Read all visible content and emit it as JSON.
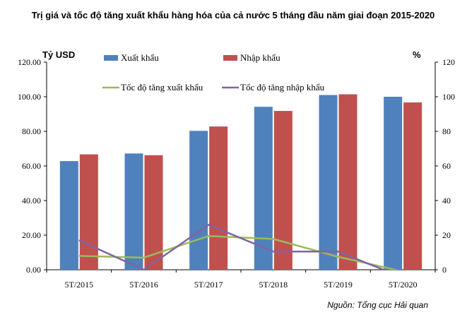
{
  "chart_data": {
    "type": "bar",
    "title": "Trị giá và tốc độ tăng xuất khẩu hàng hóa của cả nước 5 tháng đầu năm giai đoạn 2015-2020",
    "ylabel_left": "Tỷ USD",
    "ylabel_right": "%",
    "categories": [
      "5T/2015",
      "5T/2016",
      "5T/2017",
      "5T/2018",
      "5T/2019",
      "5T/2020"
    ],
    "y_left_ticks": [
      "0.00",
      "20.00",
      "40.00",
      "60.00",
      "80.00",
      "100.00",
      "120.00"
    ],
    "y_right_ticks": [
      "0",
      "20",
      "40",
      "60",
      "80",
      "100",
      "120"
    ],
    "ylim_left": [
      0,
      120
    ],
    "ylim_right": [
      0,
      120
    ],
    "legend_placement": "top",
    "series": [
      {
        "name": "Xuất khẩu",
        "kind": "bar",
        "axis": "left",
        "color": "#4f81bd",
        "values": [
          62.8,
          67.2,
          80.3,
          94.2,
          101.0,
          100.0
        ]
      },
      {
        "name": "Nhập khẩu",
        "kind": "bar",
        "axis": "left",
        "color": "#c0504d",
        "values": [
          66.7,
          66.2,
          82.8,
          91.8,
          101.4,
          96.7
        ]
      },
      {
        "name": "Tốc độ tăng xuất khẩu",
        "kind": "line",
        "axis": "right",
        "color": "#9bbb59",
        "values": [
          8.0,
          7.0,
          19.5,
          17.8,
          7.5,
          -1.0
        ]
      },
      {
        "name": "Tốc độ tăng nhập khẩu",
        "kind": "line",
        "axis": "right",
        "color": "#8064a2",
        "values": [
          17.0,
          0.0,
          26.0,
          10.5,
          10.5,
          -4.5
        ]
      }
    ]
  },
  "source": "Nguồn: Tổng cục Hải quan"
}
